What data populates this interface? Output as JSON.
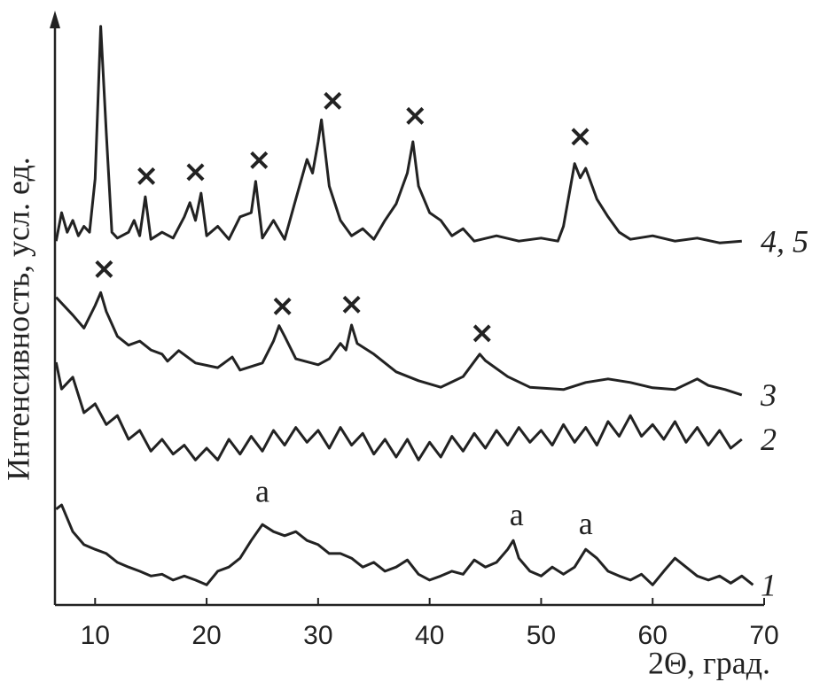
{
  "chart_data": {
    "type": "line",
    "x_label": "2Θ, град.",
    "y_label": "Интенсивность, усл. ед.",
    "xlim": [
      6.4,
      70
    ],
    "xticks": [
      10,
      20,
      30,
      40,
      50,
      60,
      70
    ],
    "ylim": [
      0,
      100
    ],
    "series": [
      {
        "name": "4, 5",
        "color": "#222222",
        "x": [
          6.5,
          7,
          7.5,
          8,
          8.5,
          9,
          9.5,
          10,
          10.5,
          11,
          11.5,
          12,
          13,
          13.5,
          14,
          14.5,
          15,
          16,
          17,
          18,
          18.5,
          19,
          19.5,
          20,
          21,
          22,
          23,
          24,
          24.4,
          25,
          26,
          27,
          28,
          29,
          29.5,
          30,
          30.3,
          31,
          32,
          33,
          34,
          35,
          36,
          37,
          38,
          38.5,
          39,
          40,
          41,
          42,
          43,
          44,
          46,
          48,
          50,
          51.5,
          52,
          53,
          53.5,
          54,
          55,
          56,
          57,
          58,
          60,
          62,
          64,
          66,
          68
        ],
        "values": [
          61.5,
          66.3,
          63,
          65,
          62.4,
          64,
          63,
          72,
          97.8,
          79.8,
          63,
          62,
          63,
          65,
          62.4,
          69,
          61.8,
          63,
          62,
          65.6,
          68,
          65,
          69.6,
          62.4,
          64,
          61.8,
          65.6,
          66.3,
          71.6,
          62,
          65,
          61.8,
          68.6,
          75.3,
          73,
          78.3,
          82,
          70.8,
          65,
          62.4,
          63.6,
          61.8,
          65,
          67.8,
          73,
          78.3,
          70.8,
          66.3,
          65,
          62.4,
          63.6,
          61.5,
          62.4,
          61.5,
          62,
          61.5,
          64,
          74.6,
          72.2,
          73.8,
          68.6,
          65.6,
          63,
          61.8,
          62.4,
          61.5,
          62,
          61.2,
          61.5
        ]
      },
      {
        "name": "3",
        "color": "#222222",
        "x": [
          6.5,
          8,
          9,
          10,
          10.5,
          11,
          12,
          13,
          14,
          15,
          16,
          16.5,
          17.5,
          19,
          21,
          22.3,
          23,
          25,
          26,
          26.5,
          27,
          28,
          30,
          31,
          32,
          32.5,
          33,
          33.5,
          35,
          37,
          39,
          41,
          43,
          44.5,
          45,
          47,
          49,
          52,
          54,
          56,
          58,
          60,
          62,
          64,
          65,
          66.5,
          68
        ],
        "values": [
          52,
          49,
          46.8,
          50.6,
          52.8,
          49.6,
          45.4,
          43.9,
          44.6,
          43.1,
          42.4,
          41.2,
          43,
          40.9,
          40.1,
          41.9,
          39.7,
          40.9,
          44.6,
          47.2,
          45.4,
          41.6,
          40.6,
          41.6,
          44.2,
          43.1,
          47.3,
          44.2,
          42.4,
          39.4,
          37.9,
          36.8,
          38.6,
          42.4,
          41.3,
          38.6,
          36.8,
          36.4,
          37.6,
          38.2,
          37.6,
          36.7,
          36.4,
          38.2,
          37.1,
          36.4,
          35.5
        ]
      },
      {
        "name": "2",
        "color": "#222222",
        "x": [
          6.5,
          7,
          8,
          9,
          10,
          11,
          12,
          13,
          14,
          15,
          16,
          17,
          18,
          19,
          20,
          21,
          22,
          23,
          24,
          25,
          26,
          27,
          28,
          29,
          30,
          31,
          32,
          33,
          34,
          35,
          36,
          37,
          38,
          39,
          40,
          41,
          42,
          43,
          44,
          45,
          46,
          47,
          48,
          49,
          50,
          51,
          52,
          53,
          54,
          55,
          56,
          57,
          58,
          59,
          60,
          61,
          62,
          63,
          64,
          65,
          66,
          67,
          68
        ],
        "values": [
          41,
          36.5,
          38.5,
          32.5,
          34,
          30.5,
          32,
          28,
          29.5,
          26,
          28,
          25.5,
          27,
          24.5,
          26.5,
          24.5,
          28,
          25.5,
          28.5,
          26,
          29.5,
          27,
          30,
          27.5,
          29.5,
          26.5,
          30,
          27,
          29,
          25.5,
          28,
          25,
          28,
          24.5,
          27.5,
          25,
          28.5,
          26,
          29,
          26.5,
          29.5,
          27,
          30,
          27.5,
          29.5,
          27,
          30.5,
          27.5,
          30,
          27,
          31,
          28.5,
          32,
          28.5,
          30.5,
          28,
          31,
          27.5,
          30,
          27,
          29.5,
          26.5,
          28
        ]
      },
      {
        "name": "1",
        "color": "#222222",
        "x": [
          6.5,
          7,
          8,
          9,
          10,
          11,
          12,
          13,
          14,
          15,
          16,
          17,
          18,
          19,
          20,
          21,
          22,
          23,
          24,
          25,
          26,
          27,
          28,
          29,
          30,
          31,
          32,
          33,
          34,
          35,
          36,
          37,
          38,
          39,
          40,
          41,
          42,
          43,
          44,
          45,
          46,
          47,
          47.5,
          48,
          49,
          50,
          51,
          52,
          53,
          54,
          55,
          56,
          57,
          58,
          59,
          60,
          61,
          62,
          63,
          64,
          65,
          66,
          67,
          68,
          69
        ],
        "values": [
          16.2,
          16.9,
          12.4,
          10.2,
          9.4,
          8.7,
          7.2,
          6.4,
          5.7,
          4.9,
          5.2,
          4.2,
          4.9,
          4.2,
          3.4,
          5.7,
          6.4,
          7.9,
          10.9,
          13.6,
          12.4,
          11.7,
          12.4,
          10.9,
          10.2,
          8.7,
          8.7,
          7.9,
          6.4,
          7.2,
          5.7,
          6.4,
          7.6,
          5.2,
          4.2,
          4.9,
          5.7,
          5.2,
          7.6,
          6.4,
          7.2,
          9.4,
          10.9,
          7.9,
          5.7,
          4.9,
          6.4,
          5.2,
          6.4,
          9.4,
          7.9,
          5.7,
          4.9,
          4.2,
          5.2,
          3.4,
          5.7,
          7.9,
          6.4,
          4.9,
          4.2,
          4.9,
          3.7,
          4.9,
          3.4
        ]
      }
    ],
    "annotations": [
      {
        "text": "×",
        "x": 14.6,
        "y": 72.3
      },
      {
        "text": "×",
        "x": 19,
        "y": 73
      },
      {
        "text": "×",
        "x": 24.7,
        "y": 75
      },
      {
        "text": "×",
        "x": 31.3,
        "y": 85
      },
      {
        "text": "×",
        "x": 38.7,
        "y": 82.5
      },
      {
        "text": "×",
        "x": 53.5,
        "y": 79
      },
      {
        "text": "×",
        "x": 10.8,
        "y": 56.6
      },
      {
        "text": "×",
        "x": 26.8,
        "y": 50.3
      },
      {
        "text": "×",
        "x": 33,
        "y": 50.6
      },
      {
        "text": "×",
        "x": 44.7,
        "y": 45.7
      },
      {
        "text": "a",
        "x": 25,
        "y": 18.7
      },
      {
        "text": "a",
        "x": 47.8,
        "y": 14.7
      },
      {
        "text": "a",
        "x": 54,
        "y": 13.2
      }
    ]
  }
}
